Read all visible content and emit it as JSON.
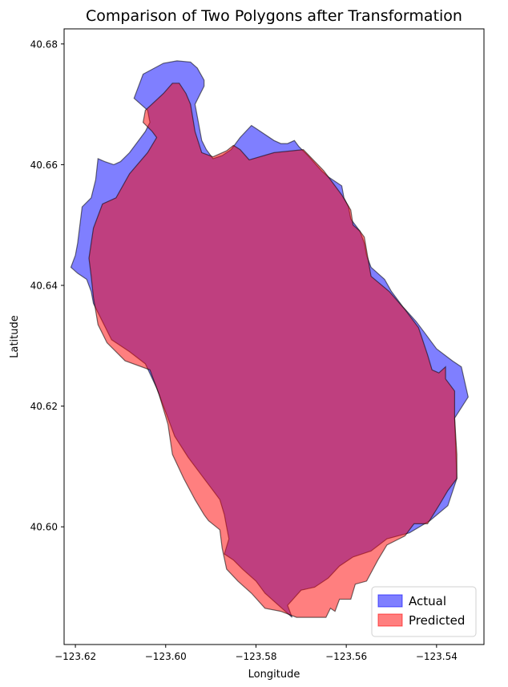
{
  "chart_data": {
    "type": "area",
    "title": "Comparison of Two Polygons after Transformation",
    "xlabel": "Longitude",
    "ylabel": "Latitude",
    "xlim": [
      -123.6225,
      -123.5295
    ],
    "ylim": [
      40.5805,
      40.6825
    ],
    "xticks": [
      -123.62,
      -123.6,
      -123.58,
      -123.56,
      -123.54
    ],
    "xtick_labels": [
      "−123.62",
      "−123.60",
      "−123.58",
      "−123.56",
      "−123.54"
    ],
    "yticks": [
      40.6,
      40.62,
      40.64,
      40.66,
      40.68
    ],
    "ytick_labels": [
      "40.60",
      "40.62",
      "40.64",
      "40.66",
      "40.68"
    ],
    "grid": false,
    "legend_position": "lower-right",
    "series": [
      {
        "name": "Actual",
        "color": "#0000ff",
        "opacity": 0.5,
        "points": [
          [
            -123.572,
            40.585
          ],
          [
            -123.573,
            40.587
          ],
          [
            -123.57,
            40.5895
          ],
          [
            -123.567,
            40.59
          ],
          [
            -123.564,
            40.5915
          ],
          [
            -123.5615,
            40.5935
          ],
          [
            -123.5585,
            40.595
          ],
          [
            -123.5545,
            40.596
          ],
          [
            -123.551,
            40.598
          ],
          [
            -123.546,
            40.599
          ],
          [
            -123.5415,
            40.601
          ],
          [
            -123.5375,
            40.6035
          ],
          [
            -123.5355,
            40.608
          ],
          [
            -123.536,
            40.618
          ],
          [
            -123.533,
            40.6215
          ],
          [
            -123.5345,
            40.6265
          ],
          [
            -123.5365,
            40.6275
          ],
          [
            -123.54,
            40.6295
          ],
          [
            -123.5415,
            40.631
          ],
          [
            -123.5425,
            40.632
          ],
          [
            -123.5445,
            40.634
          ],
          [
            -123.5475,
            40.6365
          ],
          [
            -123.55,
            40.639
          ],
          [
            -123.5515,
            40.641
          ],
          [
            -123.5545,
            40.643
          ],
          [
            -123.5555,
            40.645
          ],
          [
            -123.556,
            40.647
          ],
          [
            -123.557,
            40.649
          ],
          [
            -123.559,
            40.651
          ],
          [
            -123.5595,
            40.653
          ],
          [
            -123.5605,
            40.6545
          ],
          [
            -123.561,
            40.6565
          ],
          [
            -123.564,
            40.658
          ],
          [
            -123.5655,
            40.659
          ],
          [
            -123.5685,
            40.6615
          ],
          [
            -123.5705,
            40.663
          ],
          [
            -123.5715,
            40.664
          ],
          [
            -123.573,
            40.6635
          ],
          [
            -123.5745,
            40.6635
          ],
          [
            -123.576,
            40.664
          ],
          [
            -123.58,
            40.666
          ],
          [
            -123.581,
            40.6665
          ],
          [
            -123.5835,
            40.6645
          ],
          [
            -123.5855,
            40.6625
          ],
          [
            -123.5875,
            40.6615
          ],
          [
            -123.5895,
            40.661
          ],
          [
            -123.591,
            40.6625
          ],
          [
            -123.592,
            40.664
          ],
          [
            -123.593,
            40.668
          ],
          [
            -123.5935,
            40.67
          ],
          [
            -123.5925,
            40.6715
          ],
          [
            -123.5915,
            40.673
          ],
          [
            -123.5915,
            40.674
          ],
          [
            -123.593,
            40.676
          ],
          [
            -123.5945,
            40.677
          ],
          [
            -123.5975,
            40.6772
          ],
          [
            -123.6005,
            40.6768
          ],
          [
            -123.605,
            40.675
          ],
          [
            -123.607,
            40.671
          ],
          [
            -123.604,
            40.669
          ],
          [
            -123.6035,
            40.667
          ],
          [
            -123.6045,
            40.6655
          ],
          [
            -123.608,
            40.662
          ],
          [
            -123.61,
            40.6605
          ],
          [
            -123.6115,
            40.66
          ],
          [
            -123.6135,
            40.6605
          ],
          [
            -123.615,
            40.661
          ],
          [
            -123.6155,
            40.6575
          ],
          [
            -123.6165,
            40.6545
          ],
          [
            -123.6185,
            40.653
          ],
          [
            -123.619,
            40.65
          ],
          [
            -123.6195,
            40.647
          ],
          [
            -123.62,
            40.645
          ],
          [
            -123.621,
            40.643
          ],
          [
            -123.6195,
            40.642
          ],
          [
            -123.6175,
            40.641
          ],
          [
            -123.6165,
            40.639
          ],
          [
            -123.616,
            40.637
          ],
          [
            -123.614,
            40.634
          ],
          [
            -123.612,
            40.631
          ],
          [
            -123.608,
            40.629
          ],
          [
            -123.6045,
            40.627
          ],
          [
            -123.602,
            40.623
          ],
          [
            -123.6,
            40.619
          ],
          [
            -123.598,
            40.615
          ],
          [
            -123.595,
            40.6115
          ],
          [
            -123.592,
            40.6085
          ],
          [
            -123.59,
            40.6065
          ],
          [
            -123.588,
            40.6045
          ],
          [
            -123.587,
            40.602
          ],
          [
            -123.5865,
            40.6
          ],
          [
            -123.586,
            40.598
          ],
          [
            -123.587,
            40.5955
          ],
          [
            -123.585,
            40.5945
          ],
          [
            -123.583,
            40.593
          ],
          [
            -123.58,
            40.591
          ],
          [
            -123.578,
            40.589
          ],
          [
            -123.575,
            40.587
          ]
        ]
      },
      {
        "name": "Predicted",
        "color": "#ff0000",
        "opacity": 0.5,
        "points": [
          [
            -123.571,
            40.585
          ],
          [
            -123.568,
            40.585
          ],
          [
            -123.5645,
            40.585
          ],
          [
            -123.5635,
            40.5865
          ],
          [
            -123.5625,
            40.586
          ],
          [
            -123.5615,
            40.588
          ],
          [
            -123.559,
            40.588
          ],
          [
            -123.558,
            40.5905
          ],
          [
            -123.5555,
            40.591
          ],
          [
            -123.553,
            40.5945
          ],
          [
            -123.551,
            40.597
          ],
          [
            -123.547,
            40.5985
          ],
          [
            -123.545,
            40.6005
          ],
          [
            -123.542,
            40.6005
          ],
          [
            -123.5395,
            40.6035
          ],
          [
            -123.5375,
            40.606
          ],
          [
            -123.5355,
            40.608
          ],
          [
            -123.5355,
            40.612
          ],
          [
            -123.536,
            40.618
          ],
          [
            -123.536,
            40.6225
          ],
          [
            -123.538,
            40.6245
          ],
          [
            -123.538,
            40.6265
          ],
          [
            -123.5395,
            40.6255
          ],
          [
            -123.541,
            40.626
          ],
          [
            -123.542,
            40.6285
          ],
          [
            -123.544,
            40.633
          ],
          [
            -123.547,
            40.636
          ],
          [
            -123.5505,
            40.639
          ],
          [
            -123.5545,
            40.6415
          ],
          [
            -123.556,
            40.648
          ],
          [
            -123.557,
            40.649
          ],
          [
            -123.5585,
            40.65
          ],
          [
            -123.559,
            40.6525
          ],
          [
            -123.561,
            40.655
          ],
          [
            -123.565,
            40.659
          ],
          [
            -123.5695,
            40.6625
          ],
          [
            -123.576,
            40.662
          ],
          [
            -123.5815,
            40.6608
          ],
          [
            -123.5835,
            40.6625
          ],
          [
            -123.585,
            40.6632
          ],
          [
            -123.5865,
            40.6623
          ],
          [
            -123.5895,
            40.6613
          ],
          [
            -123.592,
            40.662
          ],
          [
            -123.5935,
            40.6655
          ],
          [
            -123.5945,
            40.67
          ],
          [
            -123.5955,
            40.6718
          ],
          [
            -123.597,
            40.6735
          ],
          [
            -123.5985,
            40.6735
          ],
          [
            -123.6005,
            40.6718
          ],
          [
            -123.6045,
            40.669
          ],
          [
            -123.605,
            40.667
          ],
          [
            -123.603,
            40.6655
          ],
          [
            -123.602,
            40.6645
          ],
          [
            -123.604,
            40.662
          ],
          [
            -123.608,
            40.6585
          ],
          [
            -123.611,
            40.6545
          ],
          [
            -123.614,
            40.6535
          ],
          [
            -123.616,
            40.6495
          ],
          [
            -123.617,
            40.6445
          ],
          [
            -123.6165,
            40.6415
          ],
          [
            -123.616,
            40.638
          ],
          [
            -123.615,
            40.6335
          ],
          [
            -123.613,
            40.6305
          ],
          [
            -123.609,
            40.6275
          ],
          [
            -123.6035,
            40.626
          ],
          [
            -123.6015,
            40.622
          ],
          [
            -123.5995,
            40.617
          ],
          [
            -123.5985,
            40.612
          ],
          [
            -123.596,
            40.608
          ],
          [
            -123.5935,
            40.6045
          ],
          [
            -123.5915,
            40.602
          ],
          [
            -123.591,
            40.6015
          ],
          [
            -123.5905,
            40.601
          ],
          [
            -123.588,
            40.5995
          ],
          [
            -123.5875,
            40.5965
          ],
          [
            -123.5865,
            40.593
          ],
          [
            -123.584,
            40.591
          ],
          [
            -123.581,
            40.589
          ],
          [
            -123.578,
            40.5865
          ],
          [
            -123.5745,
            40.586
          ]
        ]
      }
    ]
  }
}
